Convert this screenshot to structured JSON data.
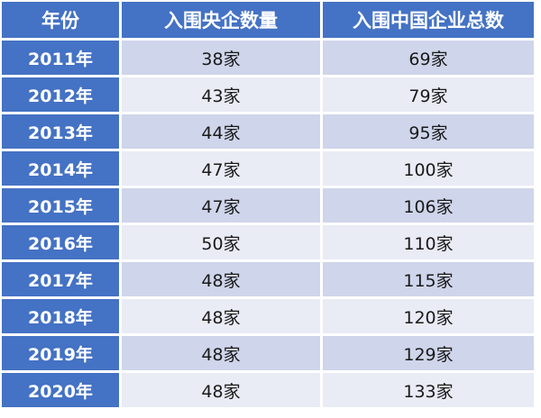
{
  "headers": [
    "年份",
    "入围央企数量",
    "入围中国企业总数"
  ],
  "rows": [
    [
      "2011年",
      "38家",
      "69家"
    ],
    [
      "2012年",
      "43家",
      "79家"
    ],
    [
      "2013年",
      "44家",
      "95家"
    ],
    [
      "2014年",
      "47家",
      "100家"
    ],
    [
      "2015年",
      "47家",
      "106家"
    ],
    [
      "2016年",
      "50家",
      "110家"
    ],
    [
      "2017年",
      "48家",
      "115家"
    ],
    [
      "2018年",
      "48家",
      "120家"
    ],
    [
      "2019年",
      "48家",
      "129家"
    ],
    [
      "2020年",
      "48家",
      "133家"
    ]
  ],
  "colors": {
    "header": "#4472c4",
    "row_odd": "#cfd5ea",
    "row_even": "#e9ebf5"
  }
}
